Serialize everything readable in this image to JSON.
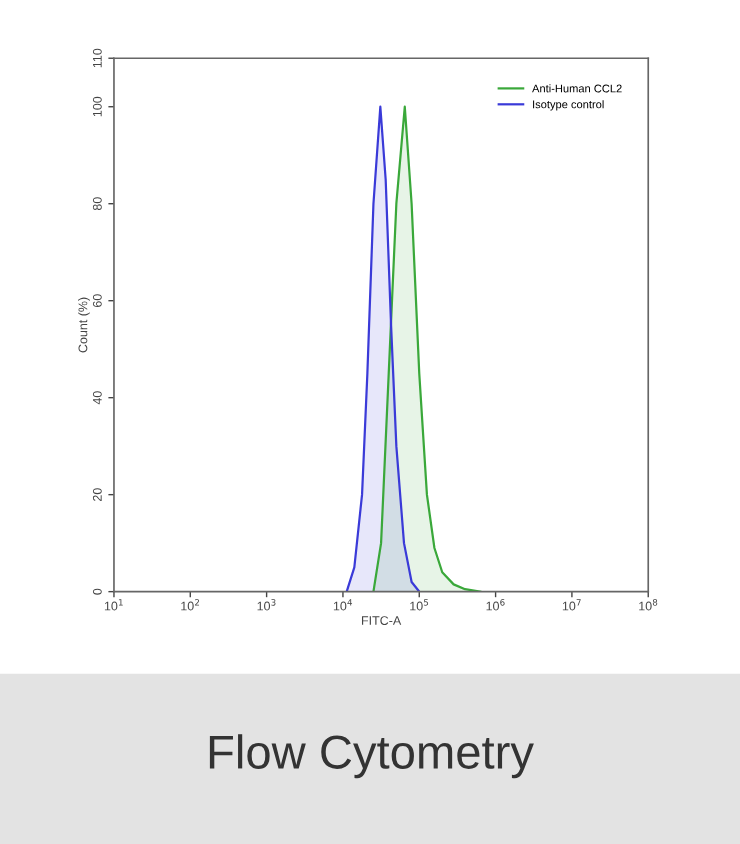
{
  "chart_data": {
    "type": "area",
    "xlabel": "FITC-A",
    "ylabel": "Count (%)",
    "log": "x",
    "xlim": [
      10,
      100000000
    ],
    "ylim": [
      0,
      110
    ],
    "xticks": [
      {
        "value": 10,
        "label": "10$^{1}$"
      },
      {
        "value": 100,
        "label": "10$^{2}$"
      },
      {
        "value": 1000,
        "label": "10$^{3}$"
      },
      {
        "value": 10000,
        "label": "10$^{4}$"
      },
      {
        "value": 100000,
        "label": "10$^{5}$"
      },
      {
        "value": 1000000,
        "label": "10$^{6}$"
      },
      {
        "value": 10000000,
        "label": "10$^{7}$"
      },
      {
        "value": 100000000,
        "label": "10$^{8}$"
      }
    ],
    "yticks": [
      0,
      20,
      40,
      60,
      80,
      100,
      110
    ],
    "grid": false,
    "legend": "top right",
    "series": [
      {
        "name": "Anti-Human CCL2",
        "color": "#3aa83a",
        "x": [
          25100,
          31600,
          39800,
          50100,
          64600,
          79400,
          100000,
          126000,
          158000,
          200000,
          282000,
          398000,
          631000
        ],
        "values": [
          0,
          10,
          45,
          80,
          100,
          80,
          45,
          20,
          9,
          4,
          1.5,
          0.5,
          0
        ]
      },
      {
        "name": "Isotype control",
        "color": "#3a3ad8",
        "x": [
          11200,
          14100,
          17800,
          20900,
          25100,
          30900,
          36300,
          42700,
          50100,
          63100,
          79400,
          100000
        ],
        "values": [
          0,
          5,
          20,
          45,
          80,
          100,
          85,
          55,
          30,
          10,
          2,
          0
        ]
      }
    ],
    "annotations": [
      "Flow Cytometry"
    ]
  }
}
